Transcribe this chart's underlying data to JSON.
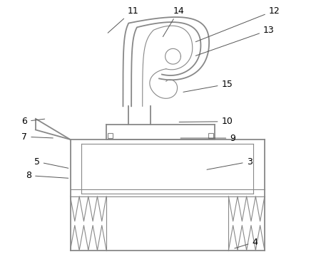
{
  "background_color": "#ffffff",
  "line_color": "#888888",
  "label_color": "#000000",
  "lw_main": 1.3,
  "lw_thin": 0.8,
  "label_fs": 9,
  "label_specs": {
    "3": [
      0.82,
      0.42,
      0.66,
      0.39
    ],
    "4": [
      0.84,
      0.13,
      0.76,
      0.105
    ],
    "5": [
      0.055,
      0.42,
      0.175,
      0.395
    ],
    "6": [
      0.01,
      0.565,
      0.09,
      0.575
    ],
    "7": [
      0.01,
      0.51,
      0.12,
      0.505
    ],
    "8": [
      0.025,
      0.37,
      0.175,
      0.36
    ],
    "9": [
      0.76,
      0.505,
      0.565,
      0.505
    ],
    "10": [
      0.74,
      0.565,
      0.56,
      0.563
    ],
    "11": [
      0.4,
      0.965,
      0.305,
      0.88
    ],
    "12": [
      0.91,
      0.965,
      0.62,
      0.85
    ],
    "13": [
      0.89,
      0.895,
      0.62,
      0.8
    ],
    "14": [
      0.565,
      0.965,
      0.505,
      0.865
    ],
    "15": [
      0.74,
      0.7,
      0.575,
      0.67
    ]
  }
}
